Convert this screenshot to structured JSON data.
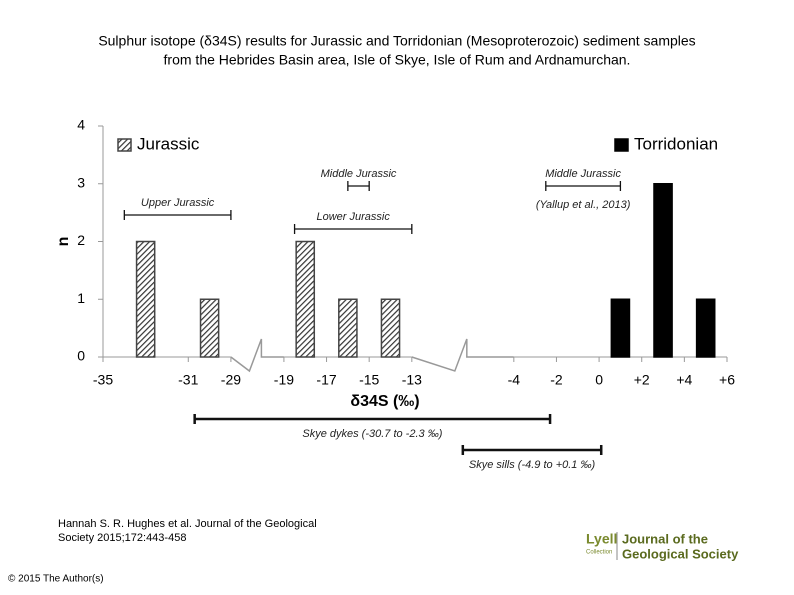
{
  "slide": {
    "title": "Sulphur isotope (δ34S) results for Jurassic and Torridonian (Mesoproterozoic) sediment samples from the Hebrides Basin area, Isle of Skye, Isle of Rum and Ardnamurchan.",
    "citation": "Hannah S. R. Hughes et al. Journal of the Geological Society 2015;172:443-458",
    "copyright": "© 2015 The Author(s)",
    "logo_lyell": "Lyell",
    "logo_collection": "Collection",
    "logo_journal": [
      "Journal of the",
      "Geological Society"
    ]
  },
  "chart_data": {
    "type": "bar",
    "xlabel": "δ34S (‰)",
    "ylabel": "n",
    "xlim": [
      -35,
      6
    ],
    "x_breaks": [
      [
        -29,
        -19
      ],
      [
        -13,
        -4
      ]
    ],
    "xticks": [
      -35,
      -31,
      -29,
      -19,
      -17,
      -15,
      -13,
      -4,
      -2,
      0,
      {
        "value": 2,
        "label": "+2"
      },
      {
        "value": 4,
        "label": "+4"
      },
      {
        "value": 6,
        "label": "+6"
      }
    ],
    "ylim": [
      0,
      4
    ],
    "yticks": [
      0,
      1,
      2,
      3,
      4
    ],
    "series": [
      {
        "name": "Jurassic",
        "color": "#444444",
        "pattern": "hatch",
        "x": [
          -33,
          -30,
          -18,
          -16,
          -14
        ],
        "values": [
          2,
          1,
          2,
          1,
          1
        ]
      },
      {
        "name": "Torridonian",
        "color": "#000000",
        "x": [
          1,
          3,
          5
        ],
        "values": [
          1,
          3,
          1
        ]
      }
    ],
    "annotations": [
      {
        "text": "Upper Jurassic",
        "x": [
          -34,
          -29
        ],
        "level": 0
      },
      {
        "text": "Middle Jurassic",
        "x": [
          -16,
          -15
        ],
        "level": 1
      },
      {
        "text": "Lower Jurassic",
        "x": [
          -18.5,
          -13
        ],
        "level": 2
      },
      {
        "text": "Middle Jurassic",
        "note": "(Yallup et al., 2013)",
        "x": [
          -2.5,
          1
        ],
        "level": 3
      },
      {
        "text": "Skye dykes (-30.7 to -2.3 ‰)",
        "x": [
          -30.7,
          -2.3
        ],
        "level": 4
      },
      {
        "text": "Skye sills (-4.9 to +0.1 ‰)",
        "x": [
          -4.9,
          0.1
        ],
        "level": 5
      }
    ]
  }
}
